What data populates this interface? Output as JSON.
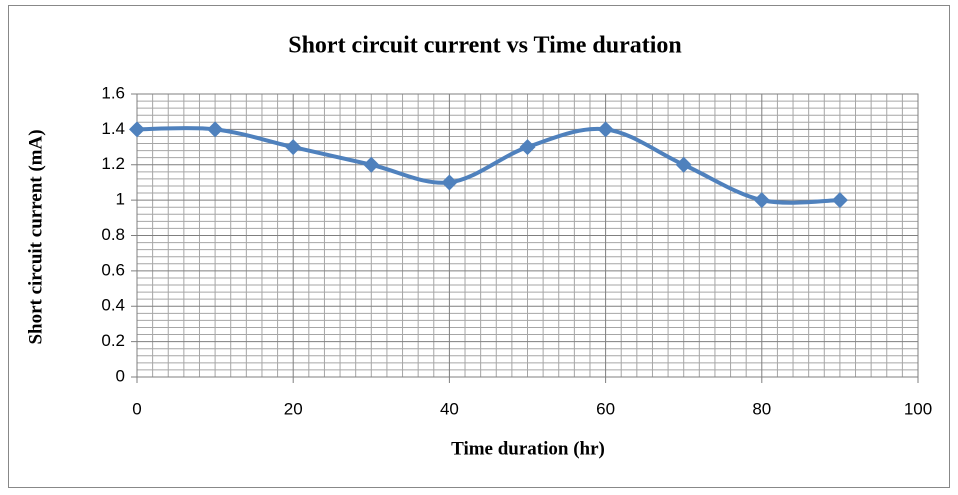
{
  "chart_data": {
    "type": "line",
    "title": "Short circuit current vs Time duration",
    "x_label": "Time duration (hr)",
    "y_label": "Short circuit current (mA)",
    "x": [
      0,
      10,
      20,
      30,
      40,
      50,
      60,
      70,
      80,
      90
    ],
    "series": [
      {
        "name": "Short circuit current",
        "color": "#4f81bd",
        "values": [
          1.4,
          1.4,
          1.3,
          1.2,
          1.1,
          1.3,
          1.4,
          1.2,
          1.0,
          1.0
        ]
      }
    ],
    "xlim": [
      0,
      100
    ],
    "xticks": [
      0,
      20,
      40,
      60,
      80,
      100
    ],
    "ylim": [
      0,
      1.6
    ],
    "yticks": [
      0,
      0.2,
      0.4,
      0.6,
      0.8,
      1,
      1.2,
      1.4,
      1.6
    ],
    "grid": true,
    "minor_divisions": [
      10,
      5
    ],
    "smooth": true,
    "marker": "diamond"
  }
}
